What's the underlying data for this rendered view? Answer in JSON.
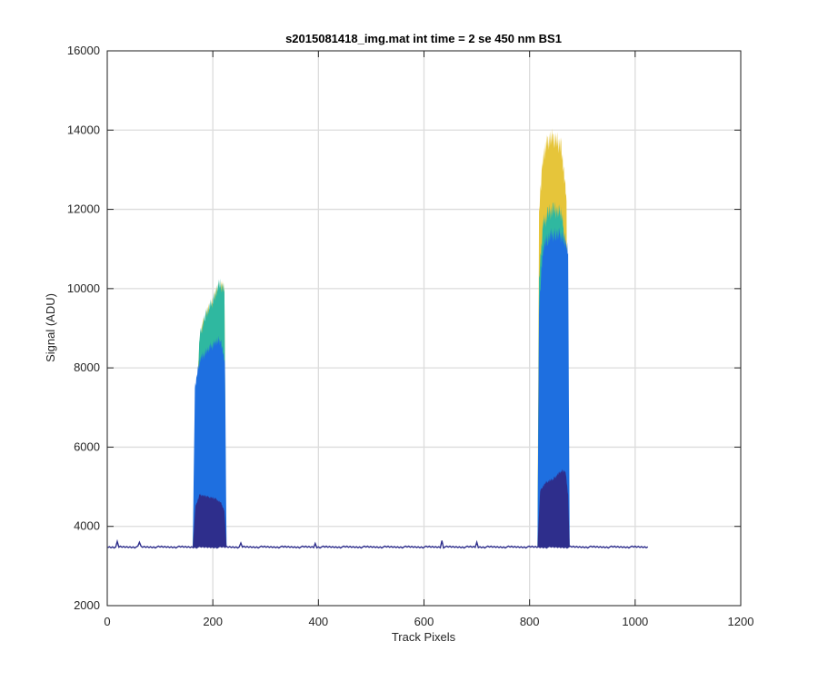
{
  "chart_data": {
    "type": "area",
    "title": "s2015081418_img.mat int time = 2 se  450 nm BS1",
    "xlabel": "Track Pixels",
    "ylabel": "Signal (ADU)",
    "xlim": [
      0,
      1200
    ],
    "ylim": [
      2000,
      16000
    ],
    "xticks": [
      0,
      200,
      400,
      600,
      800,
      1000,
      1200
    ],
    "yticks": [
      2000,
      4000,
      6000,
      8000,
      10000,
      12000,
      14000,
      16000
    ],
    "grid": true,
    "baseline": 3480,
    "x_range": [
      1,
      1024
    ],
    "colors": [
      "#E6C53A",
      "#2FB8A0",
      "#1E6FE0",
      "#2E2E8C"
    ],
    "series": [
      {
        "peaks": [
          {
            "x": [
              162,
              166,
              175,
              185,
              200,
              212,
              222,
              225
            ],
            "y": [
              3480,
              6000,
              8800,
              9300,
              9700,
              10100,
              10000,
              3480
            ]
          },
          {
            "x": [
              815,
              818,
              825,
              835,
              845,
              860,
              870,
              873
            ],
            "y": [
              3480,
              12000,
              13300,
              13750,
              13800,
              13600,
              12200,
              3480
            ]
          }
        ]
      },
      {
        "peaks": [
          {
            "x": [
              162,
              166,
              175,
              185,
              200,
              212,
              222,
              225
            ],
            "y": [
              3480,
              6000,
              8800,
              9300,
              9700,
              10100,
              10000,
              3480
            ]
          },
          {
            "x": [
              815,
              818,
              825,
              835,
              845,
              860,
              870,
              873
            ],
            "y": [
              3480,
              10200,
              11600,
              11900,
              12000,
              11900,
              11000,
              3480
            ]
          }
        ]
      },
      {
        "peaks": [
          {
            "x": [
              162,
              166,
              175,
              190,
              205,
              215,
              223,
              226
            ],
            "y": [
              3480,
              7500,
              8200,
              8450,
              8650,
              8700,
              8100,
              3480
            ]
          },
          {
            "x": [
              815,
              818,
              825,
              835,
              850,
              865,
              873,
              876
            ],
            "y": [
              3480,
              9500,
              11000,
              11300,
              11400,
              11300,
              10900,
              3480
            ]
          }
        ]
      },
      {
        "peaks": [
          {
            "x": [
              162,
              167,
              175,
              190,
              205,
              215,
              222,
              226
            ],
            "y": [
              3480,
              4500,
              4800,
              4750,
              4700,
              4600,
              4400,
              3480
            ]
          },
          {
            "x": [
              815,
              820,
              830,
              845,
              860,
              868,
              873,
              876
            ],
            "y": [
              3480,
              4900,
              5100,
              5200,
              5400,
              5400,
              4800,
              3480
            ]
          }
        ]
      }
    ],
    "spikes": [
      {
        "x": 18,
        "y": 3620
      },
      {
        "x": 62,
        "y": 3600
      },
      {
        "x": 253,
        "y": 3580
      },
      {
        "x": 395,
        "y": 3570
      },
      {
        "x": 633,
        "y": 3640
      },
      {
        "x": 700,
        "y": 3600
      }
    ]
  }
}
